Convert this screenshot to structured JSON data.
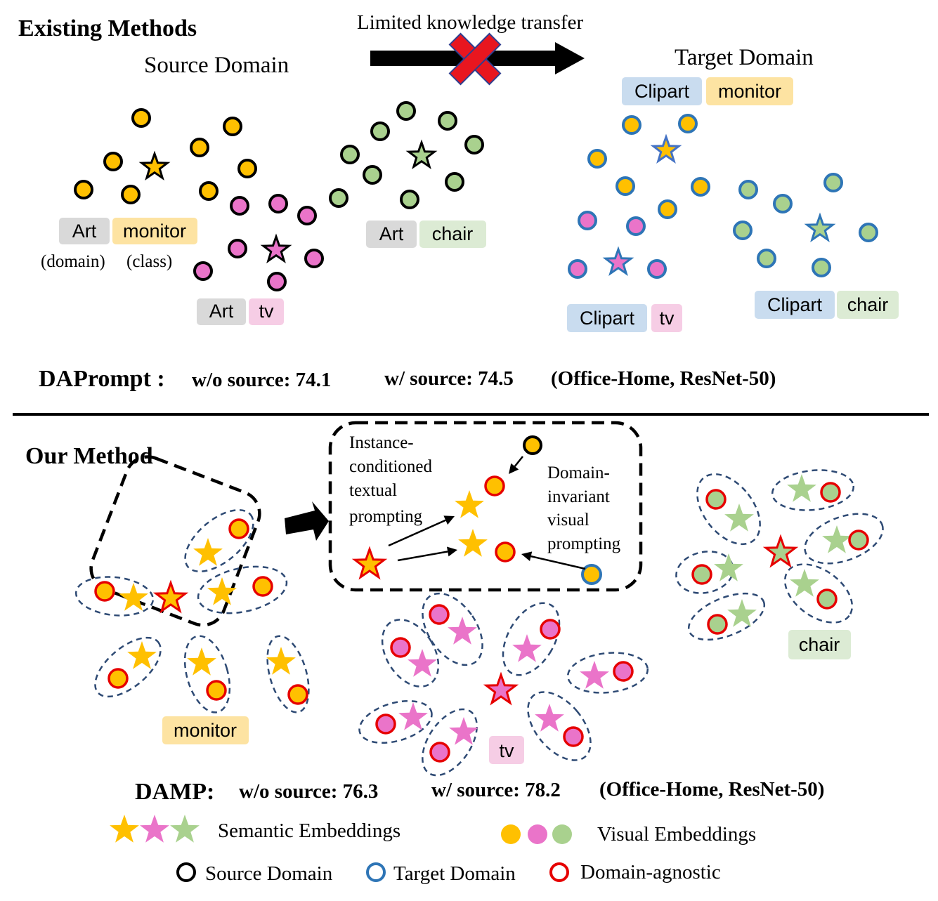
{
  "colors": {
    "gold": "#ffc000",
    "pink": "#ea74c9",
    "green": "#a9d18e",
    "source_outline": "#000000",
    "target_outline": "#2e75b6",
    "agnostic_outline": "#e60000",
    "cross": "#e8161f"
  },
  "top": {
    "title": "Existing Methods",
    "transfer_label": "Limited knowledge transfer",
    "source_domain": "Source Domain",
    "target_domain": "Target Domain",
    "source_tags": {
      "monitor": {
        "domain": "Art",
        "class": "monitor"
      },
      "tv": {
        "domain": "Art",
        "class": "tv"
      },
      "chair": {
        "domain": "Art",
        "class": "chair"
      },
      "domain_caption": "(domain)",
      "class_caption": "(class)"
    },
    "target_tags": {
      "monitor": {
        "domain": "Clipart",
        "class": "monitor"
      },
      "tv": {
        "domain": "Clipart",
        "class": "tv"
      },
      "chair": {
        "domain": "Clipart",
        "class": "chair"
      }
    },
    "result": {
      "name": "DAPrompt :",
      "wo_source": "w/o source: 74.1",
      "w_source": "w/ source: 74.5",
      "setting": "(Office-Home, ResNet-50)"
    }
  },
  "bottom": {
    "title": "Our Method",
    "textual_label": [
      "Instance-",
      "conditioned",
      "textual",
      "prompting"
    ],
    "visual_label": [
      "Domain-",
      "invariant",
      "visual",
      "prompting"
    ],
    "class_tags": {
      "monitor": "monitor",
      "tv": "tv",
      "chair": "chair"
    },
    "result": {
      "name": "DAMP:",
      "wo_source": "w/o source: 76.3",
      "w_source": "w/ source: 78.2",
      "setting": "(Office-Home, ResNet-50)"
    }
  },
  "legend": {
    "semantic": "Semantic Embeddings",
    "visual": "Visual Embeddings",
    "source": "Source Domain",
    "target": "Target Domain",
    "agnostic": "Domain-agnostic"
  }
}
